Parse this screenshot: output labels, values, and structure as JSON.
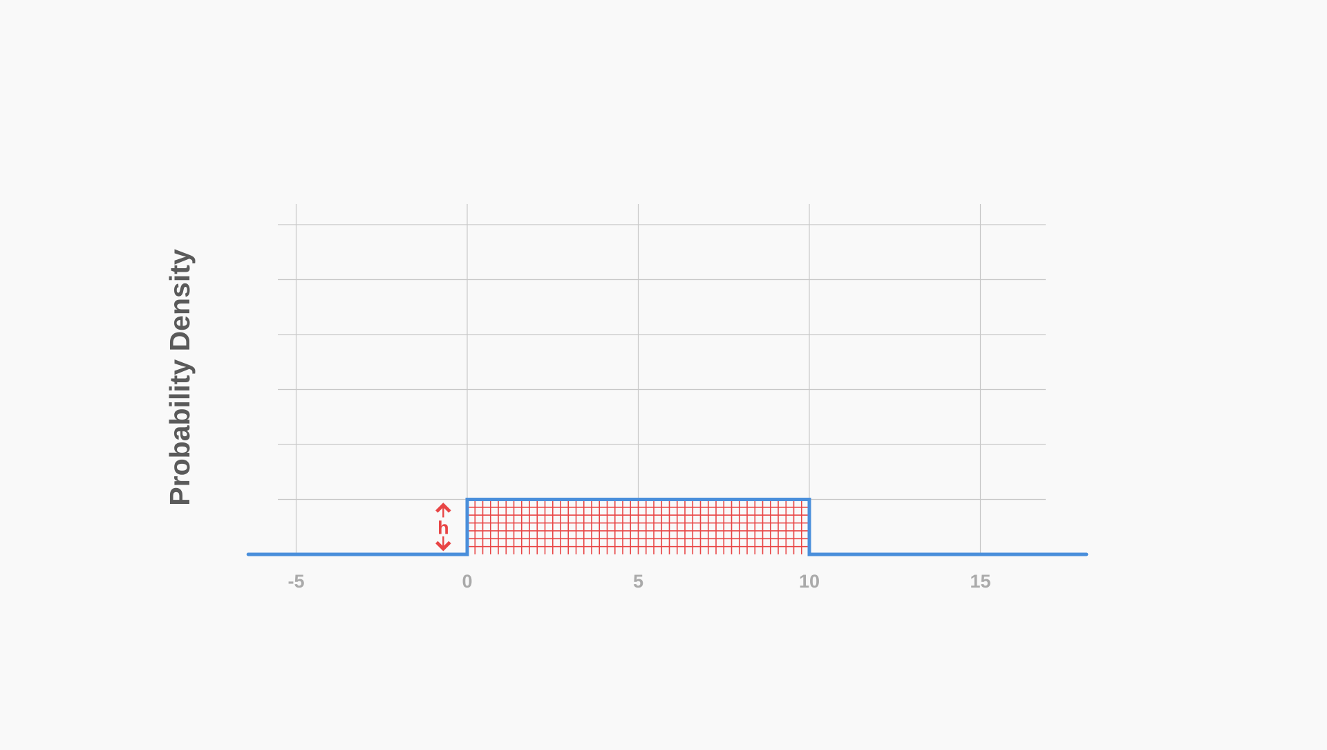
{
  "chart_data": {
    "type": "area",
    "title": "",
    "xlabel": "",
    "ylabel": "Probability Density",
    "xlim": [
      -6.4,
      18.1
    ],
    "ylim": [
      0,
      0.6
    ],
    "x_ticks": [
      -5,
      0,
      5,
      10,
      15
    ],
    "x_tick_labels": [
      "-5",
      "0",
      "5",
      "10",
      "15"
    ],
    "y_gridlines": [
      0.1,
      0.2,
      0.3,
      0.4,
      0.5,
      0.6
    ],
    "grid": true,
    "legend": "none",
    "series": [
      {
        "values": [
          {
            "x": -6.4,
            "y": 0
          },
          {
            "x": 0,
            "y": 0
          },
          {
            "x": 0,
            "y": 0.1
          },
          {
            "x": 10,
            "y": 0.1
          },
          {
            "x": 10,
            "y": 0
          },
          {
            "x": 18.1,
            "y": 0
          }
        ],
        "color": "#4a8fdb"
      }
    ],
    "shaded_region": {
      "x_from": 0,
      "x_to": 10,
      "height": 0.1,
      "color": "#e84545",
      "pattern": "grid"
    },
    "annotation": {
      "text": "h",
      "x": -0.7,
      "color": "#e84545"
    }
  },
  "colors": {
    "background": "#f9f9f9",
    "grid": "#c8c8c8",
    "line": "#4a8fdb",
    "hatch": "#e84545",
    "tick_text": "#aaaaaa",
    "title_text": "#5a5a5a"
  }
}
